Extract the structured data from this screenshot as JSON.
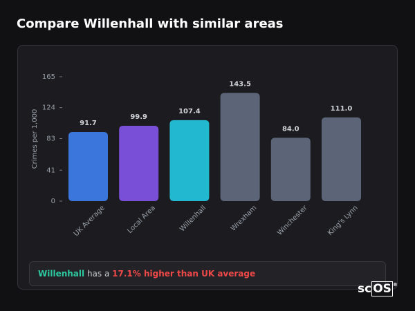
{
  "header": {
    "title": "Compare Willenhall with similar areas"
  },
  "chart_data": {
    "type": "bar",
    "y_label": "Crimes per 1,000",
    "categories": [
      "UK Average",
      "Local Area",
      "Willenhall",
      "Wrexham",
      "Winchester",
      "King's Lynn"
    ],
    "values": [
      91.7,
      99.9,
      107.4,
      143.5,
      84,
      111
    ],
    "value_labels": [
      "91.7",
      "99.9",
      "107.4",
      "143.5",
      "84.0",
      "111.0"
    ],
    "colors": [
      "#3a76db",
      "#7a4fd8",
      "#22b8d0",
      "#5b6577",
      "#5b6577",
      "#5b6577"
    ],
    "ylim": [
      0,
      165
    ],
    "yticks": [
      0,
      41,
      83,
      124,
      165
    ],
    "grid": false
  },
  "note": {
    "area": "Willenhall",
    "middle": "has a",
    "highlight": "17.1% higher than UK average"
  },
  "logo": {
    "text": "sc",
    "boxed": "OS",
    "mark": "®"
  }
}
